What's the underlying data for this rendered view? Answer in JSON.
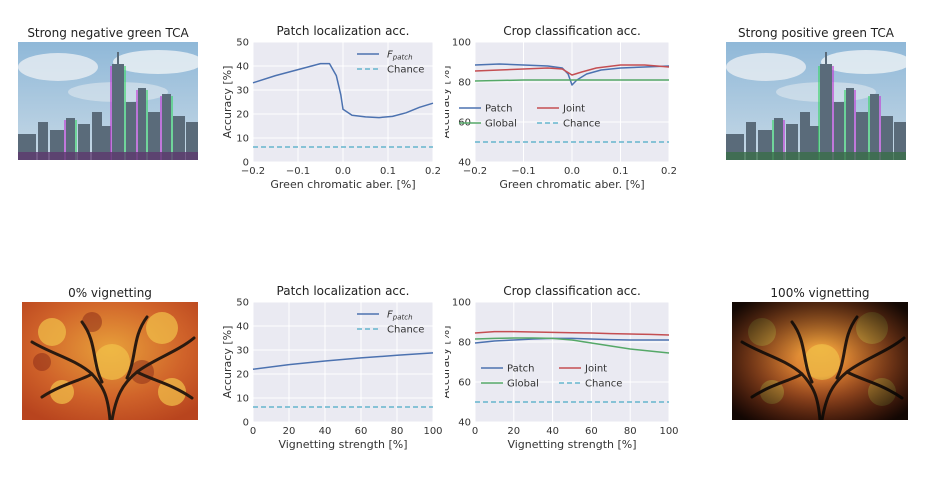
{
  "images": {
    "tca_negative": {
      "title": "Strong negative green TCA"
    },
    "tca_positive": {
      "title": "Strong positive green TCA"
    },
    "vig_zero": {
      "title": "0% vignetting"
    },
    "vig_full": {
      "title": "100% vignetting"
    }
  },
  "colors": {
    "plot_bg": "#eaeaf2",
    "grid": "#ffffff",
    "patch": "#4c72b0",
    "joint": "#c44e52",
    "global": "#55a868",
    "chance": "#64b5cd"
  },
  "chart_data": [
    {
      "id": "tca-patch",
      "type": "line",
      "title": "Patch localization acc.",
      "xlabel": "Green chromatic aber. [%]",
      "ylabel": "Accuracy [%]",
      "xlim": [
        -0.2,
        0.2
      ],
      "ylim": [
        0,
        50
      ],
      "xticks": [
        -0.2,
        -0.1,
        0.0,
        0.1,
        0.2
      ],
      "xtick_labels": [
        "−0.2",
        "−0.1",
        "0.0",
        "0.1",
        "0.2"
      ],
      "yticks": [
        0,
        10,
        20,
        30,
        40,
        50
      ],
      "ytick_labels": [
        "0",
        "10",
        "20",
        "30",
        "40",
        "50"
      ],
      "grid": true,
      "legend": "top-right",
      "series": [
        {
          "key": "patch",
          "name": "F",
          "subscript": "patch",
          "style": "solid",
          "x": [
            -0.2,
            -0.15,
            -0.1,
            -0.05,
            -0.03,
            -0.015,
            -0.005,
            0.0,
            0.02,
            0.05,
            0.08,
            0.11,
            0.14,
            0.17,
            0.2
          ],
          "y": [
            33,
            36,
            38.5,
            41,
            41,
            36,
            28,
            22,
            19.5,
            18.8,
            18.5,
            19,
            20.5,
            22.8,
            24.5
          ]
        },
        {
          "key": "chance",
          "name": "Chance",
          "style": "dashed",
          "x": [
            -0.2,
            0.2
          ],
          "y": [
            6.25,
            6.25
          ]
        }
      ]
    },
    {
      "id": "tca-crop",
      "type": "line",
      "title": "Crop classification acc.",
      "xlabel": "Green chromatic aber. [%]",
      "ylabel": "Accuracy [%]",
      "xlim": [
        -0.2,
        0.2
      ],
      "ylim": [
        40,
        100
      ],
      "xticks": [
        -0.2,
        -0.1,
        0.0,
        0.1,
        0.2
      ],
      "xtick_labels": [
        "−0.2",
        "−0.1",
        "0.0",
        "0.1",
        "0.2"
      ],
      "yticks": [
        40,
        60,
        80,
        100
      ],
      "ytick_labels": [
        "40",
        "60",
        "80",
        "100"
      ],
      "grid": true,
      "legend": "center-left",
      "series": [
        {
          "key": "patch",
          "name": "Patch",
          "style": "solid",
          "x": [
            -0.2,
            -0.15,
            -0.1,
            -0.05,
            -0.02,
            -0.008,
            0.0,
            0.01,
            0.03,
            0.06,
            0.1,
            0.15,
            0.2
          ],
          "y": [
            88.5,
            89,
            88.5,
            88,
            87,
            84,
            78.5,
            81,
            84,
            86,
            87,
            87.5,
            88
          ]
        },
        {
          "key": "global",
          "name": "Global",
          "style": "solid",
          "x": [
            -0.2,
            -0.1,
            0.0,
            0.1,
            0.2
          ],
          "y": [
            80.5,
            81,
            81,
            81,
            81
          ]
        },
        {
          "key": "joint",
          "name": "Joint",
          "style": "solid",
          "x": [
            -0.2,
            -0.15,
            -0.1,
            -0.05,
            -0.02,
            0.0,
            0.02,
            0.05,
            0.1,
            0.15,
            0.2
          ],
          "y": [
            85.5,
            86,
            86.5,
            87,
            86.5,
            83.5,
            85,
            87,
            88.5,
            88.5,
            87.5
          ]
        },
        {
          "key": "chance",
          "name": "Chance",
          "style": "dashed",
          "x": [
            -0.2,
            0.2
          ],
          "y": [
            50,
            50
          ]
        }
      ]
    },
    {
      "id": "vig-patch",
      "type": "line",
      "title": "Patch localization acc.",
      "xlabel": "Vignetting strength [%]",
      "ylabel": "Accuracy [%]",
      "xlim": [
        0,
        100
      ],
      "ylim": [
        0,
        50
      ],
      "xticks": [
        0,
        20,
        40,
        60,
        80,
        100
      ],
      "xtick_labels": [
        "0",
        "20",
        "40",
        "60",
        "80",
        "100"
      ],
      "yticks": [
        0,
        10,
        20,
        30,
        40,
        50
      ],
      "ytick_labels": [
        "0",
        "10",
        "20",
        "30",
        "40",
        "50"
      ],
      "grid": true,
      "legend": "top-right",
      "series": [
        {
          "key": "patch",
          "name": "F",
          "subscript": "patch",
          "style": "solid",
          "x": [
            0,
            20,
            40,
            60,
            80,
            100
          ],
          "y": [
            22,
            23.9,
            25.4,
            26.7,
            27.8,
            28.8
          ]
        },
        {
          "key": "chance",
          "name": "Chance",
          "style": "dashed",
          "x": [
            0,
            100
          ],
          "y": [
            6.25,
            6.25
          ]
        }
      ]
    },
    {
      "id": "vig-crop",
      "type": "line",
      "title": "Crop classification acc.",
      "xlabel": "Vignetting strength [%]",
      "ylabel": "Accuracy [%]",
      "xlim": [
        0,
        100
      ],
      "ylim": [
        40,
        100
      ],
      "xticks": [
        0,
        20,
        40,
        60,
        80,
        100
      ],
      "xtick_labels": [
        "0",
        "20",
        "40",
        "60",
        "80",
        "100"
      ],
      "yticks": [
        40,
        60,
        80,
        100
      ],
      "ytick_labels": [
        "40",
        "60",
        "80",
        "100"
      ],
      "grid": true,
      "legend": "center",
      "series": [
        {
          "key": "patch",
          "name": "Patch",
          "style": "solid",
          "x": [
            0,
            10,
            20,
            30,
            40,
            50,
            60,
            70,
            80,
            90,
            100
          ],
          "y": [
            79.5,
            80.5,
            81,
            81.5,
            81.8,
            81.8,
            81.5,
            81.2,
            81,
            81,
            81
          ]
        },
        {
          "key": "global",
          "name": "Global",
          "style": "solid",
          "x": [
            0,
            10,
            20,
            30,
            40,
            50,
            60,
            70,
            80,
            90,
            100
          ],
          "y": [
            81.5,
            81.8,
            82,
            82,
            81.8,
            81,
            79.5,
            78,
            76.5,
            75.5,
            74.5
          ]
        },
        {
          "key": "joint",
          "name": "Joint",
          "style": "solid",
          "x": [
            0,
            10,
            20,
            30,
            40,
            50,
            60,
            70,
            80,
            90,
            100
          ],
          "y": [
            84.5,
            85.2,
            85.2,
            85,
            84.8,
            84.6,
            84.5,
            84.2,
            84,
            83.8,
            83.5
          ]
        },
        {
          "key": "chance",
          "name": "Chance",
          "style": "dashed",
          "x": [
            0,
            100
          ],
          "y": [
            50,
            50
          ]
        }
      ]
    }
  ]
}
